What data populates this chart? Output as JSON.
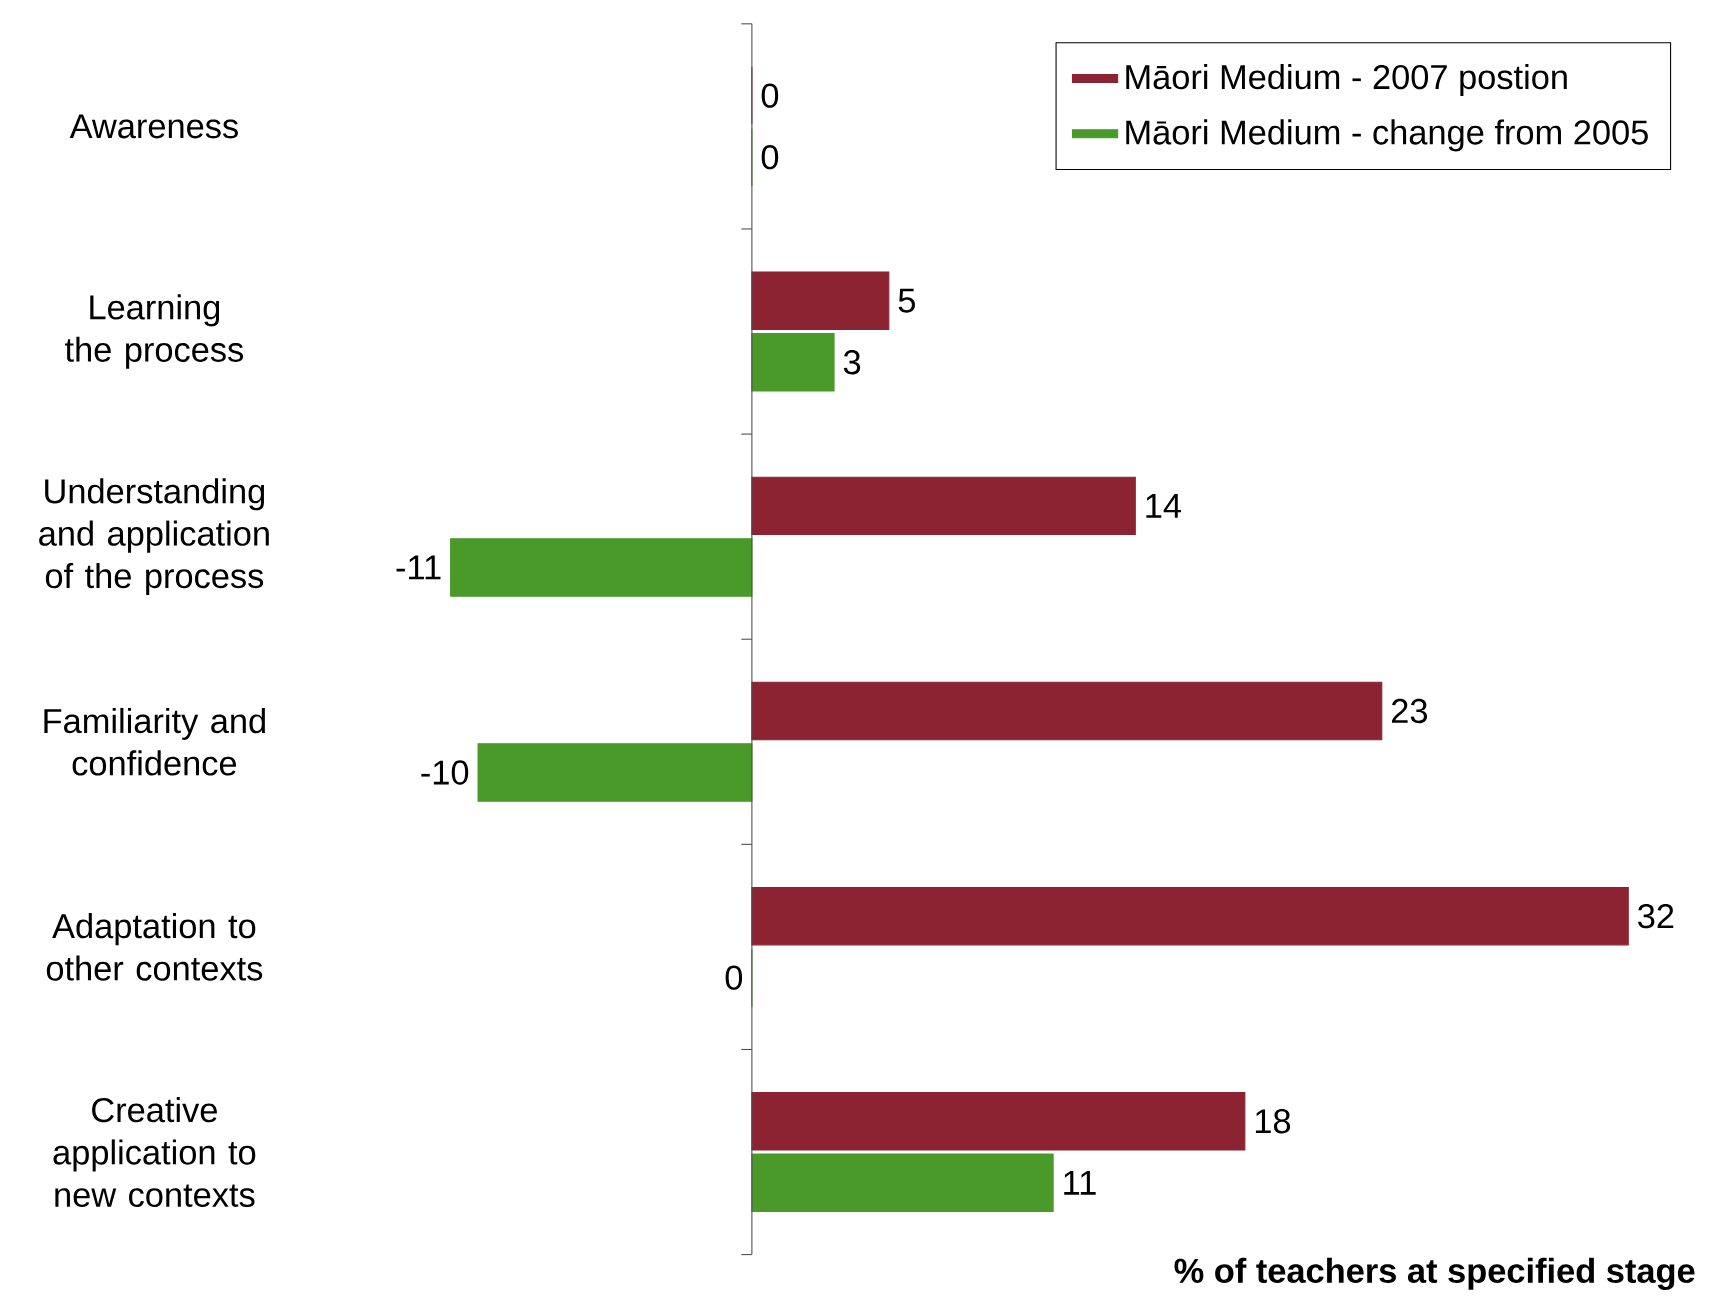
{
  "chart_data": {
    "type": "bar",
    "orientation": "horizontal",
    "xlabel": "% of teachers at specified stage",
    "categories": [
      "Awareness",
      "Learning the process",
      "Understanding and application of the process",
      "Familiarity and confidence",
      "Adaptation to other contexts",
      "Creative application to new contexts"
    ],
    "series": [
      {
        "name": "Māori Medium - 2007 postion",
        "color": "#8b2332",
        "values": [
          0,
          5,
          14,
          23,
          32,
          18
        ]
      },
      {
        "name": "Māori Medium - change from 2005",
        "color": "#4a9a2a",
        "values": [
          0,
          3,
          -11,
          -10,
          0,
          11
        ]
      }
    ],
    "data_labels": true,
    "legend": "top right"
  }
}
